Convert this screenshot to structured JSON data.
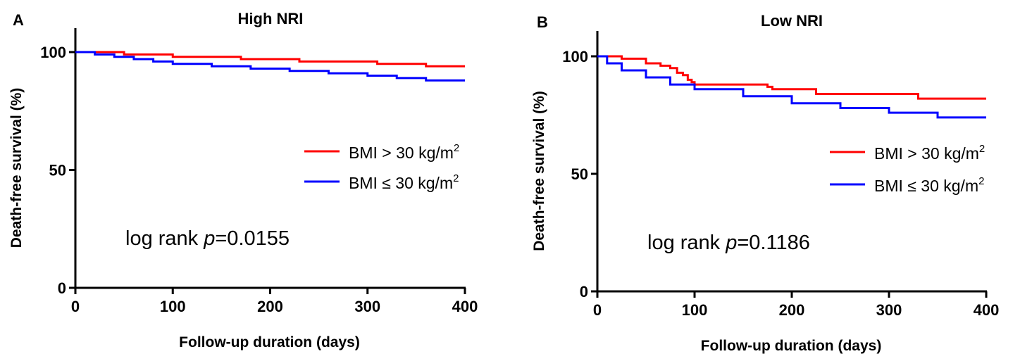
{
  "chart_data": [
    {
      "panel": "A",
      "type": "line",
      "subtype": "kaplan-meier",
      "title": "High NRI",
      "xlabel": "Follow-up duration (days)",
      "ylabel": "Death-free survival (%)",
      "xlim": [
        0,
        400
      ],
      "ylim": [
        0,
        100
      ],
      "xticks": [
        0,
        100,
        200,
        300,
        400
      ],
      "yticks": [
        0,
        50,
        100
      ],
      "grid": false,
      "legend_position": "center-right",
      "annotation": {
        "prefix": "log rank ",
        "italic": "p",
        "suffix": "=0.0155"
      },
      "series": [
        {
          "name": "BMI > 30 kg/m2",
          "legend_text": "BMI > 30 kg/m",
          "legend_sup": "2",
          "color": "#ff0000",
          "x": [
            0,
            40,
            50,
            100,
            170,
            230,
            310,
            350,
            360,
            400
          ],
          "y": [
            100,
            100,
            99,
            98,
            97,
            96,
            95,
            95,
            94,
            94
          ]
        },
        {
          "name": "BMI ≤ 30 kg/m2",
          "legend_text": "BMI ≤ 30 kg/m",
          "legend_sup": "2",
          "color": "#0000ff",
          "x": [
            0,
            20,
            40,
            60,
            80,
            100,
            140,
            180,
            220,
            260,
            300,
            330,
            360,
            400
          ],
          "y": [
            100,
            99,
            98,
            97,
            96,
            95,
            94,
            93,
            92,
            91,
            90,
            89,
            88,
            88
          ]
        }
      ]
    },
    {
      "panel": "B",
      "type": "line",
      "subtype": "kaplan-meier",
      "title": "Low NRI",
      "xlabel": "Follow-up duration (days)",
      "ylabel": "Death-free survival (%)",
      "xlim": [
        0,
        400
      ],
      "ylim": [
        0,
        100
      ],
      "xticks": [
        0,
        100,
        200,
        300,
        400
      ],
      "yticks": [
        0,
        50,
        100
      ],
      "grid": false,
      "legend_position": "center-right",
      "annotation": {
        "prefix": "log rank ",
        "italic": "p",
        "suffix": "=0.1186"
      },
      "series": [
        {
          "name": "BMI > 30 kg/m2",
          "legend_text": "BMI > 30 kg/m",
          "legend_sup": "2",
          "color": "#ff0000",
          "x": [
            0,
            15,
            25,
            35,
            50,
            65,
            75,
            82,
            88,
            93,
            97,
            100,
            170,
            175,
            180,
            225,
            330,
            400
          ],
          "y": [
            100,
            100,
            99,
            99,
            97,
            96,
            95,
            93,
            92,
            90,
            89,
            88,
            88,
            87,
            86,
            84,
            82,
            82
          ]
        },
        {
          "name": "BMI ≤ 30 kg/m2",
          "legend_text": "BMI ≤ 30 kg/m",
          "legend_sup": "2",
          "color": "#0000ff",
          "x": [
            0,
            10,
            25,
            50,
            75,
            100,
            150,
            200,
            250,
            300,
            350,
            400
          ],
          "y": [
            100,
            97,
            94,
            91,
            88,
            86,
            83,
            80,
            78,
            76,
            74,
            74
          ]
        }
      ]
    }
  ]
}
